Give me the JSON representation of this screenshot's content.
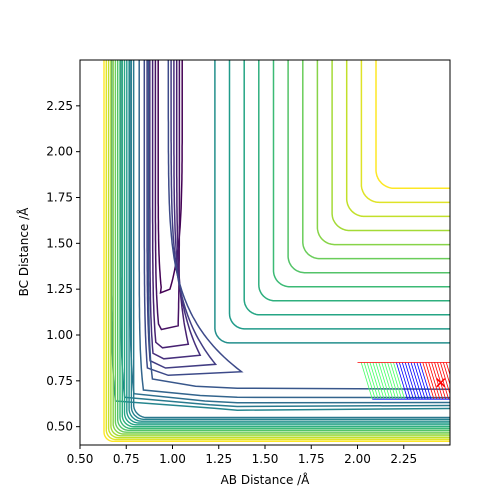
{
  "chart_data": {
    "type": "contour",
    "title": "",
    "xlabel": "AB Distance /Å",
    "ylabel": "BC Distance /Å",
    "xlim": [
      0.5,
      2.5
    ],
    "ylim": [
      0.4,
      2.5
    ],
    "xticks": [
      "0.50",
      "0.75",
      "1.00",
      "1.25",
      "1.50",
      "1.75",
      "2.00",
      "2.25"
    ],
    "yticks": [
      "0.50",
      "0.75",
      "1.00",
      "1.25",
      "1.50",
      "1.75",
      "2.00",
      "2.25"
    ],
    "grid": false,
    "colormap": "viridis",
    "colors": {
      "frame": "#000000",
      "trajectory_red": "#ff0000",
      "trajectory_blue": "#0000ff",
      "trajectory_green": "#44ff66",
      "marker": "#ff0000"
    },
    "contour_levels": [
      {
        "c": 0.25,
        "ya": 1.23,
        "right": 0.98,
        "shift": 0.0
      },
      {
        "c": 0.23,
        "ya": 1.03,
        "right": 1.03,
        "shift": 0.0
      },
      {
        "c": 0.21,
        "ya": 0.93,
        "right": 1.09,
        "shift": 0.0
      },
      {
        "c": 0.19,
        "ya": 0.87,
        "right": 1.16,
        "shift": 0.0
      },
      {
        "c": 0.17,
        "ya": 0.82,
        "right": 1.25,
        "shift": 0.0
      },
      {
        "c": 0.15,
        "ya": 0.78,
        "right": 1.4,
        "shift": 0.0
      },
      {
        "c": 0.13,
        "ya": 0.7,
        "right": 2.5,
        "shift": 0.15
      },
      {
        "c": 0.11,
        "ya": 0.65,
        "right": 2.5,
        "shift": 0.2
      },
      {
        "c": 0.09,
        "ya": 0.62,
        "right": 2.5,
        "shift": 0.25
      },
      {
        "c": 0.07,
        "ya": 0.6,
        "right": 2.5,
        "shift": 0.3
      },
      {
        "c": 0.05,
        "ya": 0.58,
        "right": 2.5,
        "shift": 0.35
      }
    ],
    "trajectory": {
      "start": [
        2.45,
        0.74
      ],
      "end": [
        2.01,
        0.82
      ],
      "marker": "x"
    }
  }
}
